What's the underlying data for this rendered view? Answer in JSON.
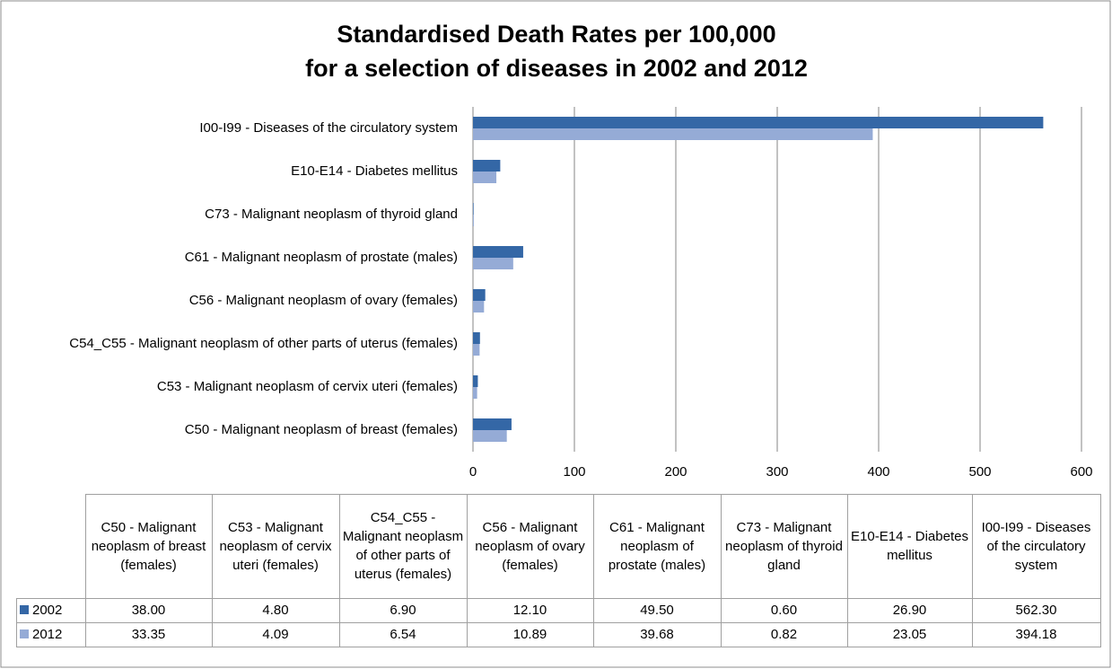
{
  "chart_data": {
    "type": "bar",
    "orientation": "horizontal",
    "title": "Standardised Death Rates per 100,000",
    "subtitle": "for a selection of diseases in 2002 and 2012",
    "categories": [
      "C50 - Malignant neoplasm of breast (females)",
      "C53 - Malignant neoplasm of cervix uteri (females)",
      "C54_C55 - Malignant neoplasm of other parts of uterus (females)",
      "C56 - Malignant neoplasm of ovary (females)",
      "C61 - Malignant neoplasm of prostate (males)",
      "C73 - Malignant neoplasm of thyroid gland",
      "E10-E14 - Diabetes mellitus",
      "I00-I99 - Diseases of the circulatory system"
    ],
    "series": [
      {
        "name": "2002",
        "color": "#3467a6",
        "values": [
          38.0,
          4.8,
          6.9,
          12.1,
          49.5,
          0.6,
          26.9,
          562.3
        ],
        "value_labels": [
          "38.00",
          "4.80",
          "6.90",
          "12.10",
          "49.50",
          "0.60",
          "26.90",
          "562.30"
        ]
      },
      {
        "name": "2012",
        "color": "#95abd6",
        "values": [
          33.35,
          4.09,
          6.54,
          10.89,
          39.68,
          0.82,
          23.05,
          394.18
        ],
        "value_labels": [
          "33.35",
          "4.09",
          "6.54",
          "10.89",
          "39.68",
          "0.82",
          "23.05",
          "394.18"
        ]
      }
    ],
    "xlim": [
      0,
      600
    ],
    "xticks": [
      0,
      100,
      200,
      300,
      400,
      500,
      600
    ],
    "grid": true,
    "data_table": true
  }
}
